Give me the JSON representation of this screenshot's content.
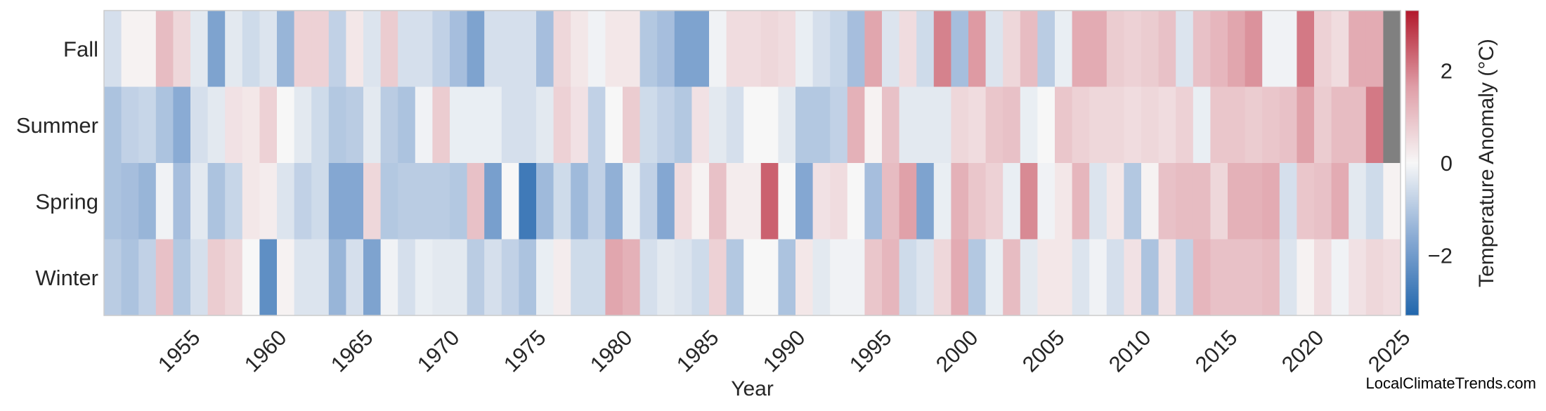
{
  "chart_data": {
    "type": "heatmap",
    "title": "",
    "xlabel": "Year",
    "colorbar_label": "Temperature Anomaly (°C)",
    "colorbar_ticks": [
      "2",
      "0",
      "−2"
    ],
    "colorbar_tick_values": [
      2,
      0,
      -2
    ],
    "value_range": [
      -3.3,
      3.3
    ],
    "year_start": 1950,
    "year_end": 2024,
    "x_ticks": [
      "1955",
      "1960",
      "1965",
      "1970",
      "1975",
      "1980",
      "1985",
      "1990",
      "1995",
      "2000",
      "2005",
      "2010",
      "2015",
      "2020",
      "2025"
    ],
    "rows": [
      "Fall",
      "Summer",
      "Spring",
      "Winter"
    ],
    "missing_color": "#808080",
    "values": {
      "Fall": [
        -0.5,
        0.1,
        0.1,
        1.1,
        0.6,
        -0.3,
        -1.8,
        -0.3,
        -0.6,
        -0.4,
        -1.4,
        0.7,
        0.7,
        -0.8,
        0.3,
        -0.4,
        0.8,
        -0.5,
        -0.5,
        -0.8,
        -1.2,
        -1.8,
        -0.5,
        -0.5,
        -0.5,
        -1.2,
        0.6,
        0.3,
        -0.1,
        0.3,
        0.3,
        -1.0,
        -1.2,
        -1.8,
        -1.8,
        -0.1,
        0.5,
        0.5,
        0.6,
        0.5,
        -0.2,
        -0.5,
        -0.7,
        -1.2,
        1.5,
        -0.4,
        0.5,
        -0.6,
        2.0,
        -1.2,
        1.7,
        -0.4,
        0.6,
        1.1,
        -0.9,
        -0.2,
        1.4,
        1.4,
        0.8,
        0.7,
        0.8,
        1.0,
        -0.4,
        1.0,
        1.2,
        1.5,
        1.8,
        -0.1,
        -0.1,
        2.1,
        0.7,
        0.5,
        1.4,
        1.4,
        null
      ],
      "Summer": [
        -1.1,
        -0.8,
        -0.7,
        -1.1,
        -1.6,
        -0.5,
        -0.3,
        0.4,
        0.3,
        0.7,
        0.0,
        -0.3,
        -0.6,
        -1.0,
        -0.9,
        -0.3,
        -0.9,
        -1.1,
        -0.1,
        0.8,
        -0.2,
        -0.2,
        -0.2,
        -0.5,
        -0.5,
        -0.3,
        0.7,
        0.4,
        -0.8,
        0.0,
        0.8,
        -0.6,
        -0.8,
        -1.0,
        0.4,
        -0.3,
        -0.5,
        0.0,
        0.0,
        -0.3,
        -1.0,
        -1.0,
        -0.8,
        1.3,
        0.1,
        1.0,
        -0.3,
        -0.3,
        -0.3,
        0.6,
        0.5,
        0.9,
        1.0,
        -0.2,
        0.0,
        0.9,
        0.7,
        0.6,
        0.6,
        0.5,
        0.6,
        0.5,
        0.7,
        -0.2,
        0.9,
        0.9,
        0.8,
        0.9,
        1.0,
        1.6,
        0.8,
        1.1,
        1.1,
        2.1,
        null
      ],
      "Spring": [
        -1.1,
        -1.2,
        -1.4,
        -0.1,
        -1.2,
        -0.3,
        -1.1,
        -0.7,
        0.3,
        0.2,
        -0.4,
        -0.8,
        -0.6,
        -1.7,
        -1.7,
        0.6,
        -1.0,
        -0.9,
        -0.9,
        -0.9,
        -1.0,
        1.0,
        -1.9,
        0.0,
        -2.8,
        -1.3,
        -0.6,
        -1.3,
        -0.8,
        -1.5,
        -0.2,
        -0.8,
        -1.7,
        0.5,
        0.1,
        1.0,
        0.2,
        0.2,
        2.4,
        0.0,
        -1.7,
        0.4,
        0.5,
        0.0,
        -1.2,
        1.1,
        1.6,
        -1.8,
        -0.2,
        1.3,
        0.9,
        0.7,
        -0.2,
        1.9,
        -0.1,
        0.3,
        1.2,
        -0.4,
        0.3,
        -1.0,
        0.1,
        1.0,
        1.1,
        1.1,
        0.6,
        1.3,
        1.3,
        1.4,
        -0.5,
        0.9,
        1.0,
        1.4,
        -0.3,
        -0.6,
        0.1
      ],
      "Winter": [
        -0.9,
        -1.1,
        -0.8,
        1.0,
        -1.0,
        -0.5,
        0.8,
        0.6,
        0.0,
        -2.3,
        0.1,
        -0.4,
        -0.4,
        -1.4,
        -0.5,
        -1.8,
        -0.1,
        -0.5,
        -0.2,
        -0.3,
        -0.3,
        -0.9,
        -0.5,
        -0.8,
        -1.1,
        -0.2,
        0.2,
        -0.6,
        -0.6,
        1.5,
        1.3,
        -0.5,
        -0.3,
        -0.4,
        -0.6,
        0.7,
        -1.0,
        0.0,
        0.0,
        -1.1,
        0.3,
        -0.3,
        -0.1,
        -0.1,
        0.9,
        1.2,
        -0.6,
        -0.4,
        0.6,
        1.4,
        -1.0,
        -0.2,
        1.1,
        -0.3,
        0.3,
        0.3,
        -0.4,
        -0.1,
        -0.5,
        0.4,
        -1.1,
        0.4,
        -0.8,
        1.2,
        1.0,
        1.0,
        1.0,
        1.1,
        -0.4,
        0.1,
        0.5,
        -0.1,
        0.4,
        0.6,
        0.5
      ]
    }
  },
  "footer": {
    "credit": "LocalClimateTrends.com"
  }
}
